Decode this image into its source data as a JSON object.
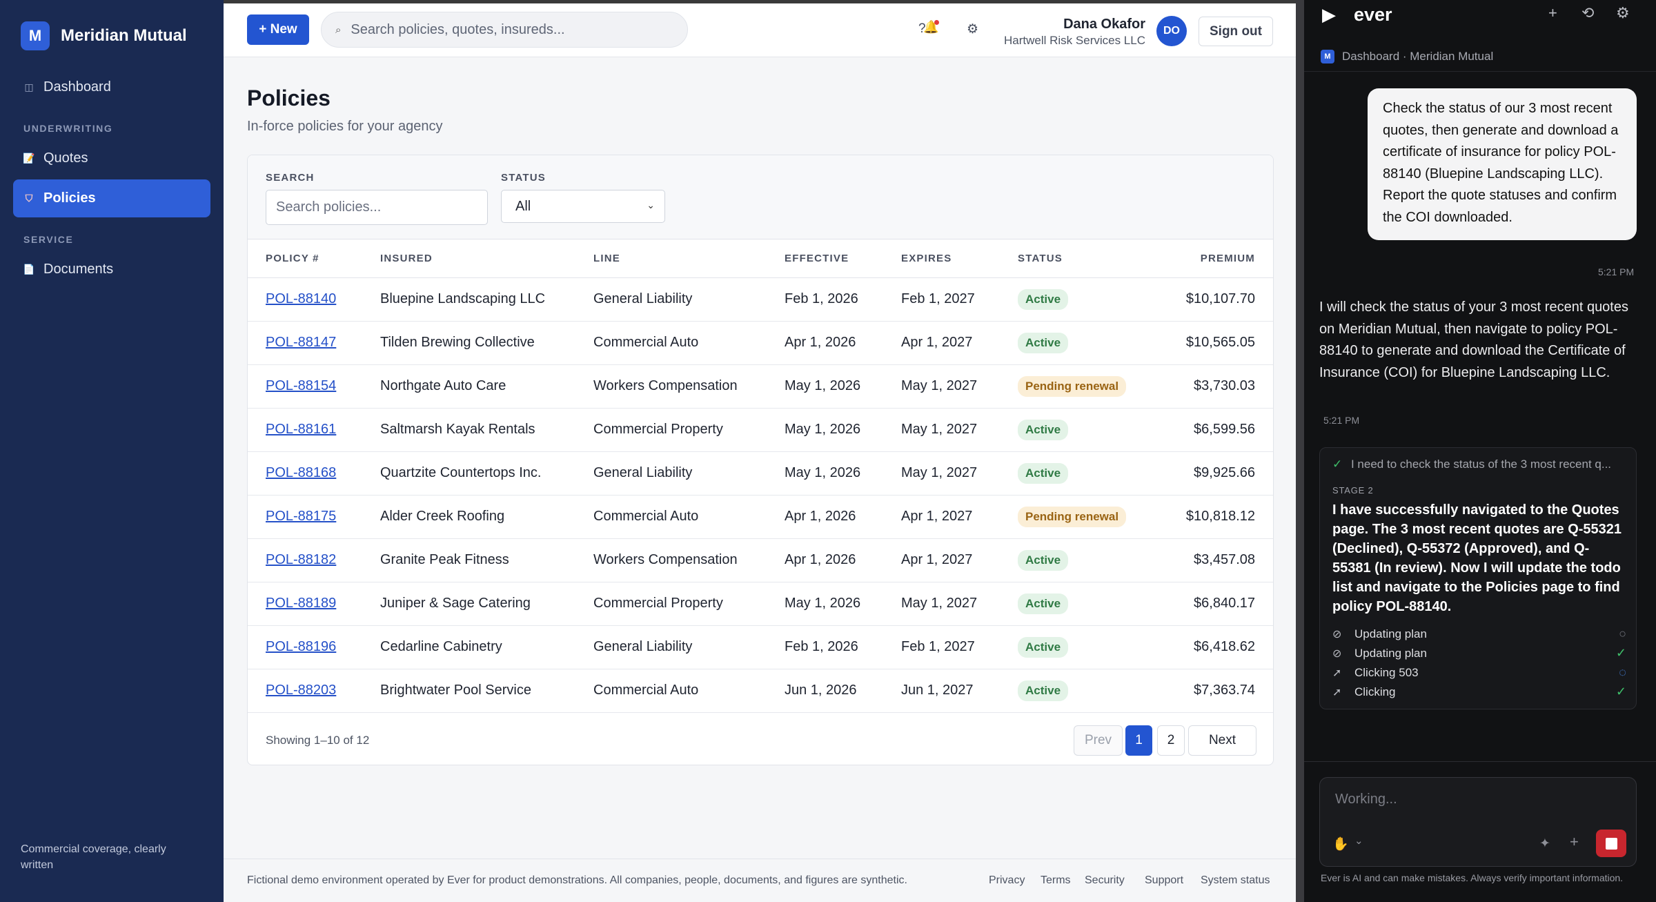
{
  "sidebar": {
    "brand_initial": "M",
    "brand_name": "Meridian Mutual",
    "dashboard": "Dashboard",
    "section_underwriting": "UNDERWRITING",
    "quotes": "Quotes",
    "policies": "Policies",
    "section_service": "SERVICE",
    "documents": "Documents",
    "footer": "Commercial coverage, clearly written"
  },
  "topbar": {
    "new_label": "+ New",
    "search_placeholder": "Search policies, quotes, insureds...",
    "help": "?",
    "bell": "🔔",
    "settings": "⚙",
    "user_name": "Dana Okafor",
    "user_org": "Hartwell Risk Services LLC",
    "avatar_initials": "DO",
    "sign_out": "Sign out"
  },
  "page": {
    "title": "Policies",
    "subtitle": "In-force policies for your agency"
  },
  "filters": {
    "search_label": "SEARCH",
    "search_placeholder": "Search policies...",
    "status_label": "STATUS",
    "status_value": "All"
  },
  "table": {
    "headers": [
      "POLICY #",
      "INSURED",
      "LINE",
      "EFFECTIVE",
      "EXPIRES",
      "STATUS",
      "PREMIUM"
    ],
    "rows": [
      {
        "policy": "POL-88140",
        "insured": "Bluepine Landscaping LLC",
        "line": "General Liability",
        "effective": "Feb 1, 2026",
        "expires": "Feb 1, 2027",
        "status": "Active",
        "premium": "$10,107.70"
      },
      {
        "policy": "POL-88147",
        "insured": "Tilden Brewing Collective",
        "line": "Commercial Auto",
        "effective": "Apr 1, 2026",
        "expires": "Apr 1, 2027",
        "status": "Active",
        "premium": "$10,565.05"
      },
      {
        "policy": "POL-88154",
        "insured": "Northgate Auto Care",
        "line": "Workers Compensation",
        "effective": "May 1, 2026",
        "expires": "May 1, 2027",
        "status": "Pending renewal",
        "premium": "$3,730.03"
      },
      {
        "policy": "POL-88161",
        "insured": "Saltmarsh Kayak Rentals",
        "line": "Commercial Property",
        "effective": "May 1, 2026",
        "expires": "May 1, 2027",
        "status": "Active",
        "premium": "$6,599.56"
      },
      {
        "policy": "POL-88168",
        "insured": "Quartzite Countertops Inc.",
        "line": "General Liability",
        "effective": "May 1, 2026",
        "expires": "May 1, 2027",
        "status": "Active",
        "premium": "$9,925.66"
      },
      {
        "policy": "POL-88175",
        "insured": "Alder Creek Roofing",
        "line": "Commercial Auto",
        "effective": "Apr 1, 2026",
        "expires": "Apr 1, 2027",
        "status": "Pending renewal",
        "premium": "$10,818.12"
      },
      {
        "policy": "POL-88182",
        "insured": "Granite Peak Fitness",
        "line": "Workers Compensation",
        "effective": "Apr 1, 2026",
        "expires": "Apr 1, 2027",
        "status": "Active",
        "premium": "$3,457.08"
      },
      {
        "policy": "POL-88189",
        "insured": "Juniper & Sage Catering",
        "line": "Commercial Property",
        "effective": "May 1, 2026",
        "expires": "May 1, 2027",
        "status": "Active",
        "premium": "$6,840.17"
      },
      {
        "policy": "POL-88196",
        "insured": "Cedarline Cabinetry",
        "line": "General Liability",
        "effective": "Feb 1, 2026",
        "expires": "Feb 1, 2027",
        "status": "Active",
        "premium": "$6,418.62"
      },
      {
        "policy": "POL-88203",
        "insured": "Brightwater Pool Service",
        "line": "Commercial Auto",
        "effective": "Jun 1, 2026",
        "expires": "Jun 1, 2027",
        "status": "Active",
        "premium": "$7,363.74"
      }
    ],
    "showing": "Showing 1–10 of 12",
    "prev": "Prev",
    "page1": "1",
    "page2": "2",
    "next": "Next"
  },
  "footer": {
    "disclaimer": "Fictional demo environment operated by Ever for product demonstrations. All companies, people, documents, and figures are synthetic.",
    "privacy": "Privacy",
    "terms": "Terms",
    "security": "Security",
    "support": "Support",
    "system_status": "System status"
  },
  "ever": {
    "logo": "▶",
    "title": "ever",
    "plus": "+",
    "history": "⟲",
    "settings": "⚙",
    "crumb_badge": "M",
    "crumb": "Dashboard · Meridian Mutual",
    "user_message": "Check the status of our 3 most recent quotes, then generate and download a certificate of insurance for policy POL-88140 (Bluepine Landscaping LLC). Report the quote statuses and confirm the COI downloaded.",
    "user_time": "5:21 PM",
    "ai_message": "I will check the status of your 3 most recent quotes on Meridian Mutual, then navigate to policy POL-88140 to generate and download the Certificate of Insurance (COI) for Bluepine Landscaping LLC.",
    "ai_time": "5:21 PM",
    "stage_check": "✓",
    "stage_prev": "I need to check the status of the 3 most recent q...",
    "stage_label": "STAGE 2",
    "stage_text": "I have successfully navigated to the Quotes page. The 3 most recent quotes are Q-55321 (Declined), Q-55372 (Approved), and Q-55381 (In review). Now I will update the todo list and navigate to the Policies page to find policy POL-88140.",
    "steps": [
      {
        "icon": "⊘",
        "label": "Updating plan",
        "state": "○"
      },
      {
        "icon": "⊘",
        "label": "Updating plan",
        "state": "✓"
      },
      {
        "icon": "➚",
        "label": "Clicking 503",
        "state": "◌"
      },
      {
        "icon": "➚",
        "label": "Clicking",
        "state": "✓"
      }
    ],
    "composer_placeholder": "Working...",
    "composer_hand": "✋",
    "composer_chev": "⌄",
    "composer_magic": "✦",
    "composer_plus": "+",
    "note": "Ever is AI and can make mistakes. Always verify important information."
  },
  "colors": {
    "accent": "#2355d1",
    "sidebar_bg": "#1a2a52",
    "active_badge": "#2f7a44",
    "pending_badge": "#9a6414",
    "stop": "#c8262e"
  }
}
